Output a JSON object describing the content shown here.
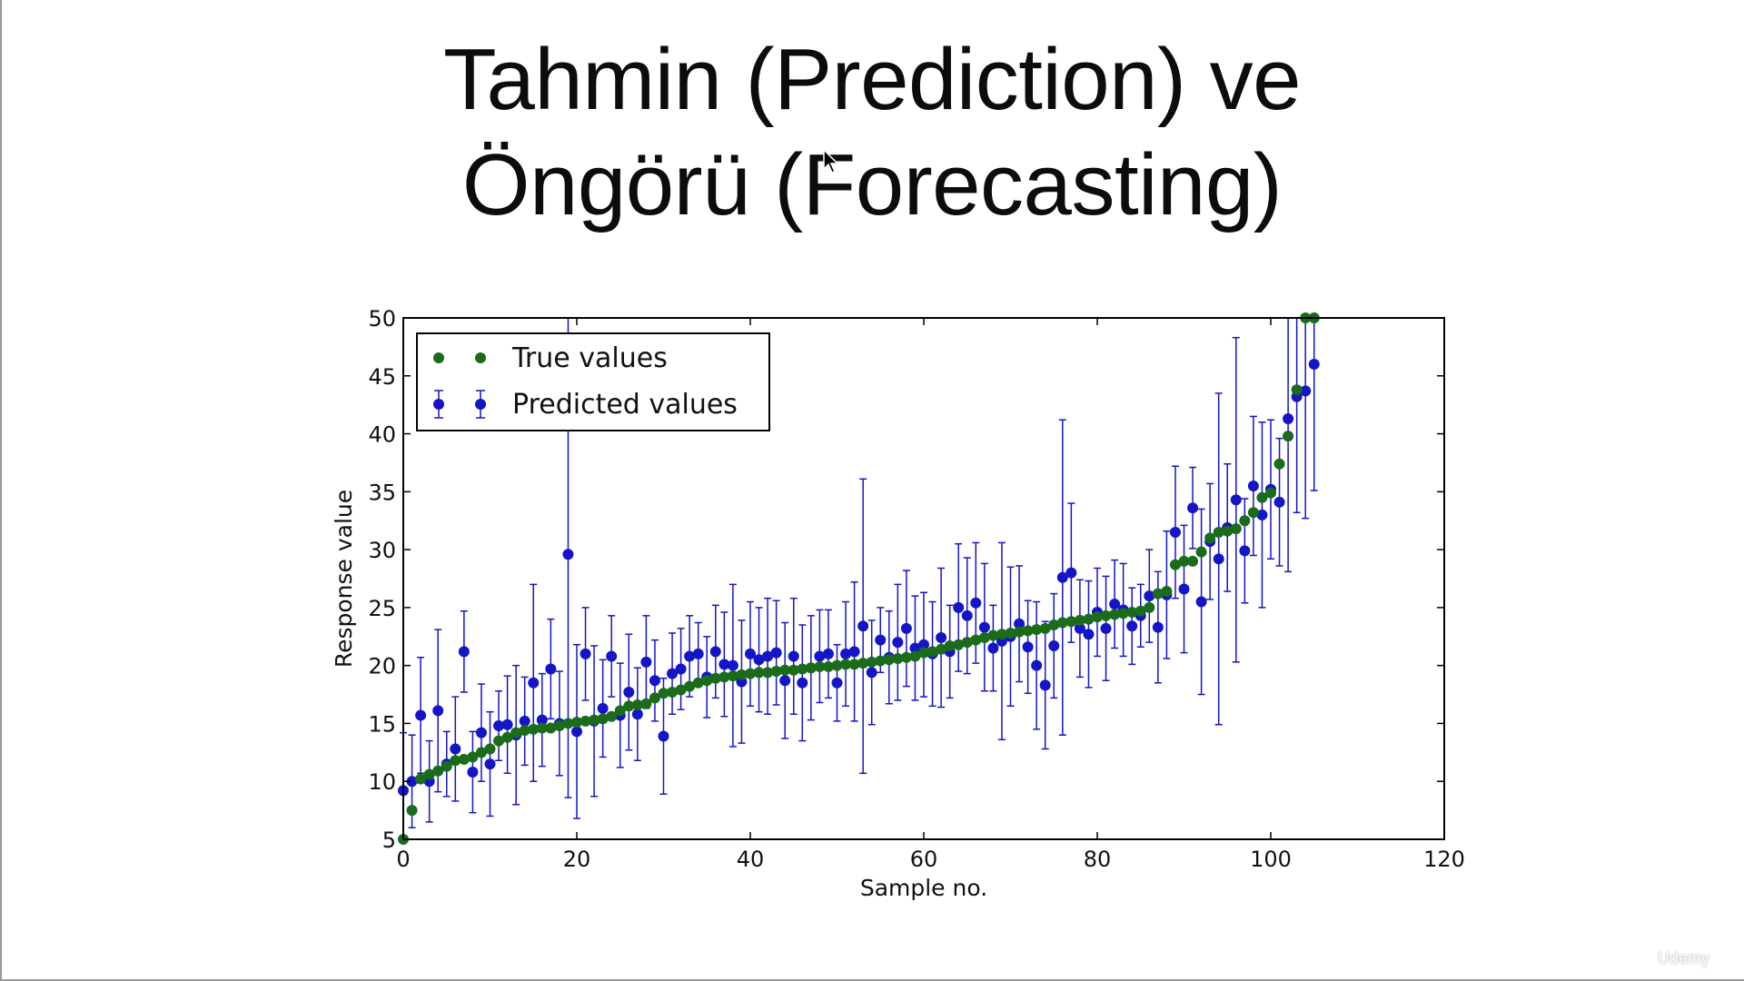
{
  "slide": {
    "title_line1": "Tahmin (Prediction) ve",
    "title_line2": "Öngörü (Forecasting)",
    "watermark": "Udemy"
  },
  "chart_data": {
    "type": "scatter",
    "xlabel": "Sample no.",
    "ylabel": "Response value",
    "xlim": [
      0,
      120
    ],
    "ylim": [
      5,
      50
    ],
    "xticks": [
      0,
      20,
      40,
      60,
      80,
      100,
      120
    ],
    "yticks": [
      5,
      10,
      15,
      20,
      25,
      30,
      35,
      40,
      45,
      50
    ],
    "grid": false,
    "legend": {
      "position": "top-left",
      "entries": [
        "True values",
        "Predicted values"
      ]
    },
    "colors": {
      "true": "#1a6b1a",
      "predicted": "#1515c8",
      "error_bar": "#1515c8"
    },
    "series": [
      {
        "name": "True values",
        "marker": "circle",
        "x": [
          0,
          1,
          2,
          3,
          4,
          5,
          6,
          7,
          8,
          9,
          10,
          11,
          12,
          13,
          14,
          15,
          16,
          17,
          18,
          19,
          20,
          21,
          22,
          23,
          24,
          25,
          26,
          27,
          28,
          29,
          30,
          31,
          32,
          33,
          34,
          35,
          36,
          37,
          38,
          39,
          40,
          41,
          42,
          43,
          44,
          45,
          46,
          47,
          48,
          49,
          50,
          51,
          52,
          53,
          54,
          55,
          56,
          57,
          58,
          59,
          60,
          61,
          62,
          63,
          64,
          65,
          66,
          67,
          68,
          69,
          70,
          71,
          72,
          73,
          74,
          75,
          76,
          77,
          78,
          79,
          80,
          81,
          82,
          83,
          84,
          85,
          86,
          87,
          88,
          89,
          90,
          91,
          92,
          93,
          94,
          95,
          96,
          97,
          98,
          99,
          100,
          101,
          102,
          103,
          104,
          105
        ],
        "y": [
          5.0,
          7.5,
          10.2,
          10.6,
          10.9,
          11.3,
          11.8,
          11.9,
          12.1,
          12.5,
          12.8,
          13.5,
          13.8,
          14.2,
          14.4,
          14.5,
          14.6,
          14.6,
          14.8,
          15.0,
          15.1,
          15.2,
          15.3,
          15.4,
          15.6,
          16.1,
          16.5,
          16.6,
          16.7,
          17.2,
          17.6,
          17.7,
          17.9,
          18.2,
          18.5,
          18.7,
          18.9,
          19.0,
          19.1,
          19.2,
          19.3,
          19.4,
          19.4,
          19.5,
          19.6,
          19.6,
          19.7,
          19.8,
          19.9,
          19.9,
          20.0,
          20.1,
          20.1,
          20.2,
          20.3,
          20.4,
          20.5,
          20.6,
          20.7,
          20.8,
          21.1,
          21.2,
          21.4,
          21.7,
          21.8,
          22.0,
          22.2,
          22.4,
          22.6,
          22.7,
          22.8,
          22.9,
          23.0,
          23.1,
          23.2,
          23.5,
          23.7,
          23.8,
          23.9,
          24.0,
          24.2,
          24.3,
          24.4,
          24.5,
          24.6,
          24.7,
          25.0,
          26.2,
          26.4,
          28.7,
          29.0,
          29.0,
          29.8,
          31.0,
          31.5,
          31.6,
          31.8,
          32.5,
          33.2,
          34.5,
          34.9,
          37.4,
          39.8,
          43.8,
          50.0,
          50.0
        ]
      },
      {
        "name": "Predicted values",
        "marker": "circle",
        "x": [
          0,
          1,
          2,
          3,
          4,
          5,
          6,
          7,
          8,
          9,
          10,
          11,
          12,
          13,
          14,
          15,
          16,
          17,
          18,
          19,
          20,
          21,
          22,
          23,
          24,
          25,
          26,
          27,
          28,
          29,
          30,
          31,
          32,
          33,
          34,
          35,
          36,
          37,
          38,
          39,
          40,
          41,
          42,
          43,
          44,
          45,
          46,
          47,
          48,
          49,
          50,
          51,
          52,
          53,
          54,
          55,
          56,
          57,
          58,
          59,
          60,
          61,
          62,
          63,
          64,
          65,
          66,
          67,
          68,
          69,
          70,
          71,
          72,
          73,
          74,
          75,
          76,
          77,
          78,
          79,
          80,
          81,
          82,
          83,
          84,
          85,
          86,
          87,
          88,
          89,
          90,
          91,
          92,
          93,
          94,
          95,
          96,
          97,
          98,
          99,
          100,
          101,
          102,
          103,
          104,
          105
        ],
        "y": [
          9.2,
          10.0,
          15.7,
          10.0,
          16.1,
          11.5,
          12.8,
          21.2,
          10.8,
          14.2,
          11.5,
          14.8,
          14.9,
          14.0,
          15.2,
          18.5,
          15.3,
          19.7,
          15.0,
          29.6,
          14.3,
          21.0,
          15.2,
          16.3,
          20.8,
          15.7,
          17.7,
          15.8,
          20.3,
          18.7,
          13.9,
          19.3,
          19.7,
          20.8,
          21.0,
          19.0,
          21.2,
          20.1,
          20.0,
          18.6,
          21.0,
          20.5,
          20.8,
          21.1,
          18.7,
          20.8,
          18.5,
          19.8,
          20.8,
          21.0,
          18.5,
          21.0,
          21.2,
          23.4,
          19.4,
          22.2,
          20.7,
          22.0,
          23.2,
          21.5,
          21.8,
          21.0,
          22.4,
          21.2,
          25.0,
          24.3,
          25.4,
          23.3,
          21.5,
          22.1,
          22.5,
          23.6,
          21.6,
          20.0,
          18.3,
          21.7,
          27.6,
          28.0,
          23.2,
          22.7,
          24.6,
          23.2,
          25.3,
          24.8,
          23.4,
          24.3,
          26.0,
          23.3,
          26.1,
          31.5,
          26.6,
          33.6,
          25.5,
          30.7,
          29.2,
          31.9,
          34.3,
          29.9,
          35.5,
          33.0,
          35.2,
          34.1,
          41.3,
          43.2,
          43.7,
          46.0
        ],
        "error": [
          5.0,
          4.0,
          5.0,
          3.5,
          7.0,
          2.8,
          4.5,
          3.5,
          3.5,
          4.2,
          4.5,
          3.0,
          4.2,
          6.0,
          3.8,
          8.5,
          4.0,
          4.3,
          4.5,
          21.0,
          7.5,
          4.0,
          6.5,
          4.2,
          3.5,
          4.5,
          5.0,
          4.0,
          4.0,
          3.5,
          5.0,
          3.5,
          3.5,
          3.5,
          2.7,
          3.5,
          4.0,
          4.5,
          7.0,
          5.3,
          4.5,
          4.5,
          5.0,
          4.5,
          5.0,
          5.0,
          5.0,
          4.5,
          4.0,
          3.8,
          3.3,
          4.5,
          6.0,
          12.7,
          4.5,
          2.8,
          4.0,
          5.0,
          5.0,
          4.5,
          4.5,
          4.5,
          6.0,
          4.0,
          5.5,
          5.0,
          5.2,
          5.5,
          3.7,
          8.5,
          6.0,
          5.0,
          4.0,
          5.5,
          5.5,
          4.5,
          13.6,
          6.0,
          4.2,
          4.6,
          3.8,
          4.5,
          3.8,
          4.0,
          3.3,
          2.7,
          4.0,
          4.8,
          5.5,
          5.7,
          5.5,
          3.5,
          8.0,
          5.0,
          14.3,
          5.5,
          14.0,
          4.5,
          6.0,
          8.0,
          6.0,
          5.5,
          13.2,
          10.0,
          11.0,
          10.9
        ]
      }
    ]
  }
}
